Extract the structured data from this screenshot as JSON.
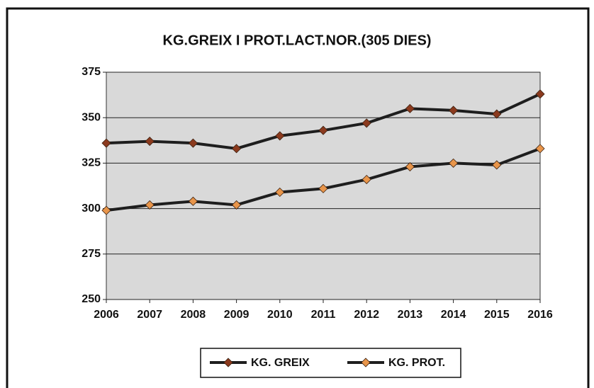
{
  "chart_data": {
    "type": "line",
    "title": "KG.GREIX I PROT.LACT.NOR.(305 DIES)",
    "categories": [
      "2006",
      "2007",
      "2008",
      "2009",
      "2010",
      "2011",
      "2012",
      "2013",
      "2014",
      "2015",
      "2016"
    ],
    "series": [
      {
        "name": "KG. GREIX",
        "color": "#8b3a1e",
        "values": [
          336,
          337,
          336,
          333,
          340,
          343,
          347,
          355,
          354,
          352,
          363
        ]
      },
      {
        "name": "KG. PROT.",
        "color": "#e8954a",
        "values": [
          299,
          302,
          304,
          302,
          309,
          311,
          316,
          323,
          325,
          324,
          333
        ]
      }
    ],
    "line_color": "#1e1e1e",
    "ylim": [
      250,
      375
    ],
    "yticks": [
      250,
      275,
      300,
      325,
      350,
      375
    ],
    "grid": true,
    "legend": "bottom"
  }
}
